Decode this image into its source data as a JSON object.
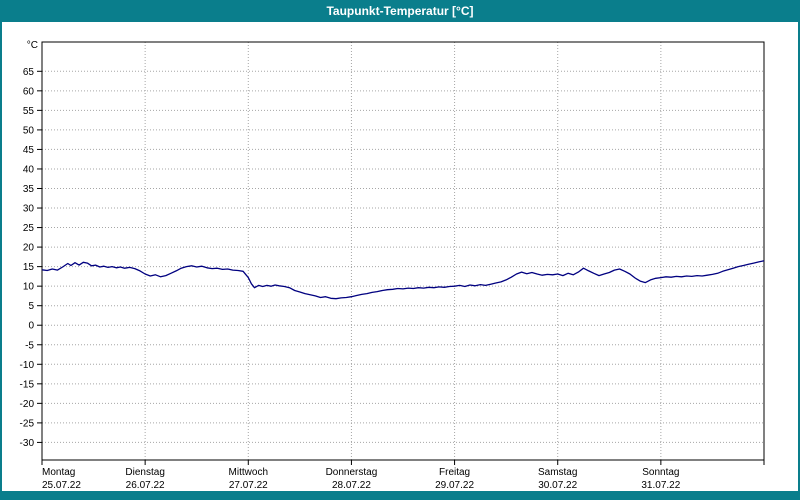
{
  "header": {
    "title": "Taupunkt-Temperatur [°C]",
    "accent_color": "#0a7e8c"
  },
  "chart_data": {
    "type": "line",
    "title": "Taupunkt-Temperatur [°C]",
    "unit_label": "°C",
    "xlabel": "",
    "ylabel": "°C",
    "ylim": [
      -34.5,
      72.5
    ],
    "xlim": [
      0,
      7
    ],
    "grid": true,
    "grid_color": "#a6a6a6",
    "line_color": "#000080",
    "plot_border_color": "#000000",
    "y_ticks": [
      65,
      60,
      55,
      50,
      45,
      40,
      35,
      30,
      25,
      20,
      15,
      10,
      5,
      0,
      -5,
      -10,
      -15,
      -20,
      -25,
      -30
    ],
    "x_ticks": [
      {
        "label": "Montag",
        "date": "25.07.22"
      },
      {
        "label": "Dienstag",
        "date": "26.07.22"
      },
      {
        "label": "Mittwoch",
        "date": "27.07.22"
      },
      {
        "label": "Donnerstag",
        "date": "28.07.22"
      },
      {
        "label": "Freitag",
        "date": "29.07.22"
      },
      {
        "label": "Samstag",
        "date": "30.07.22"
      },
      {
        "label": "Sonntag",
        "date": "31.07.22"
      }
    ],
    "series": [
      {
        "name": "Taupunkt-Temperatur",
        "points": [
          [
            0.0,
            14.2
          ],
          [
            0.05,
            14.0
          ],
          [
            0.1,
            14.4
          ],
          [
            0.15,
            14.1
          ],
          [
            0.2,
            14.9
          ],
          [
            0.25,
            15.8
          ],
          [
            0.28,
            15.3
          ],
          [
            0.32,
            16.0
          ],
          [
            0.36,
            15.4
          ],
          [
            0.4,
            16.1
          ],
          [
            0.44,
            15.9
          ],
          [
            0.48,
            15.2
          ],
          [
            0.52,
            15.4
          ],
          [
            0.56,
            14.9
          ],
          [
            0.6,
            15.1
          ],
          [
            0.64,
            14.8
          ],
          [
            0.68,
            15.0
          ],
          [
            0.72,
            14.7
          ],
          [
            0.76,
            14.9
          ],
          [
            0.8,
            14.6
          ],
          [
            0.85,
            14.8
          ],
          [
            0.9,
            14.5
          ],
          [
            0.95,
            13.9
          ],
          [
            1.0,
            13.1
          ],
          [
            1.05,
            12.6
          ],
          [
            1.1,
            12.9
          ],
          [
            1.15,
            12.4
          ],
          [
            1.2,
            12.7
          ],
          [
            1.25,
            13.3
          ],
          [
            1.3,
            13.9
          ],
          [
            1.35,
            14.6
          ],
          [
            1.4,
            15.0
          ],
          [
            1.45,
            15.2
          ],
          [
            1.5,
            14.9
          ],
          [
            1.55,
            15.1
          ],
          [
            1.6,
            14.7
          ],
          [
            1.65,
            14.5
          ],
          [
            1.7,
            14.6
          ],
          [
            1.75,
            14.3
          ],
          [
            1.8,
            14.4
          ],
          [
            1.85,
            14.1
          ],
          [
            1.9,
            14.0
          ],
          [
            1.95,
            13.8
          ],
          [
            2.0,
            12.2
          ],
          [
            2.03,
            10.6
          ],
          [
            2.06,
            9.6
          ],
          [
            2.1,
            10.2
          ],
          [
            2.14,
            9.9
          ],
          [
            2.18,
            10.2
          ],
          [
            2.22,
            10.0
          ],
          [
            2.26,
            10.3
          ],
          [
            2.3,
            10.1
          ],
          [
            2.35,
            9.9
          ],
          [
            2.4,
            9.6
          ],
          [
            2.45,
            8.9
          ],
          [
            2.5,
            8.5
          ],
          [
            2.55,
            8.1
          ],
          [
            2.6,
            7.8
          ],
          [
            2.65,
            7.5
          ],
          [
            2.7,
            7.1
          ],
          [
            2.75,
            7.3
          ],
          [
            2.8,
            6.9
          ],
          [
            2.85,
            6.8
          ],
          [
            2.9,
            7.0
          ],
          [
            2.95,
            7.1
          ],
          [
            3.0,
            7.3
          ],
          [
            3.05,
            7.6
          ],
          [
            3.1,
            7.9
          ],
          [
            3.15,
            8.1
          ],
          [
            3.2,
            8.4
          ],
          [
            3.25,
            8.6
          ],
          [
            3.3,
            8.9
          ],
          [
            3.35,
            9.1
          ],
          [
            3.4,
            9.2
          ],
          [
            3.45,
            9.4
          ],
          [
            3.5,
            9.3
          ],
          [
            3.55,
            9.5
          ],
          [
            3.6,
            9.4
          ],
          [
            3.65,
            9.6
          ],
          [
            3.7,
            9.5
          ],
          [
            3.75,
            9.7
          ],
          [
            3.8,
            9.6
          ],
          [
            3.85,
            9.8
          ],
          [
            3.9,
            9.7
          ],
          [
            3.95,
            9.9
          ],
          [
            4.0,
            10.0
          ],
          [
            4.05,
            10.2
          ],
          [
            4.1,
            9.9
          ],
          [
            4.15,
            10.3
          ],
          [
            4.2,
            10.1
          ],
          [
            4.25,
            10.4
          ],
          [
            4.3,
            10.2
          ],
          [
            4.35,
            10.5
          ],
          [
            4.4,
            10.8
          ],
          [
            4.45,
            11.1
          ],
          [
            4.5,
            11.6
          ],
          [
            4.55,
            12.3
          ],
          [
            4.6,
            13.1
          ],
          [
            4.65,
            13.6
          ],
          [
            4.7,
            13.2
          ],
          [
            4.75,
            13.5
          ],
          [
            4.8,
            13.1
          ],
          [
            4.85,
            12.8
          ],
          [
            4.9,
            13.0
          ],
          [
            4.95,
            12.9
          ],
          [
            5.0,
            13.1
          ],
          [
            5.05,
            12.7
          ],
          [
            5.1,
            13.3
          ],
          [
            5.15,
            12.9
          ],
          [
            5.2,
            13.6
          ],
          [
            5.25,
            14.6
          ],
          [
            5.3,
            13.9
          ],
          [
            5.35,
            13.3
          ],
          [
            5.4,
            12.7
          ],
          [
            5.45,
            13.1
          ],
          [
            5.5,
            13.5
          ],
          [
            5.55,
            14.1
          ],
          [
            5.6,
            14.4
          ],
          [
            5.65,
            13.8
          ],
          [
            5.7,
            13.1
          ],
          [
            5.75,
            12.1
          ],
          [
            5.8,
            11.3
          ],
          [
            5.85,
            10.9
          ],
          [
            5.9,
            11.6
          ],
          [
            5.95,
            12.0
          ],
          [
            6.0,
            12.2
          ],
          [
            6.05,
            12.4
          ],
          [
            6.1,
            12.3
          ],
          [
            6.15,
            12.5
          ],
          [
            6.2,
            12.4
          ],
          [
            6.25,
            12.6
          ],
          [
            6.3,
            12.5
          ],
          [
            6.35,
            12.7
          ],
          [
            6.4,
            12.6
          ],
          [
            6.45,
            12.8
          ],
          [
            6.5,
            13.0
          ],
          [
            6.55,
            13.3
          ],
          [
            6.6,
            13.8
          ],
          [
            6.65,
            14.2
          ],
          [
            6.7,
            14.6
          ],
          [
            6.75,
            15.0
          ],
          [
            6.8,
            15.3
          ],
          [
            6.85,
            15.6
          ],
          [
            6.9,
            15.9
          ],
          [
            6.95,
            16.2
          ],
          [
            7.0,
            16.5
          ]
        ]
      }
    ]
  }
}
